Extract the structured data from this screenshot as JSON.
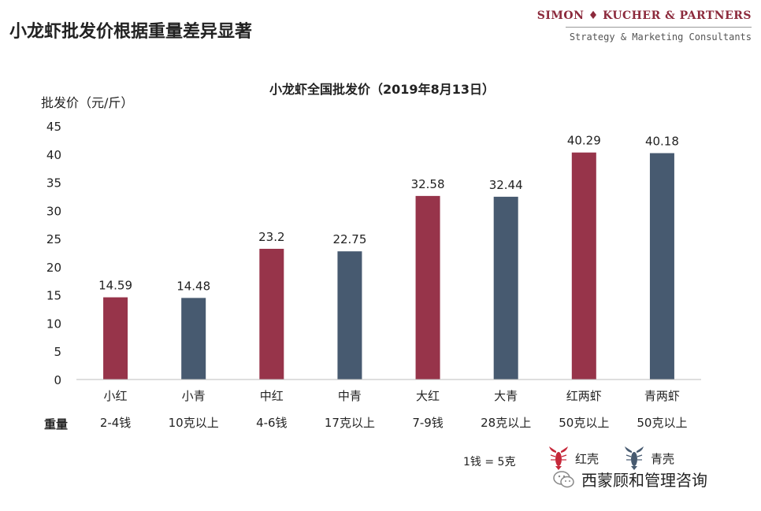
{
  "page": {
    "title": "小龙虾批发价根据重量差异显著",
    "brand_name": "SIMON ♦ KUCHER & PARTNERS",
    "brand_tagline": "Strategy & Marketing Consultants"
  },
  "chart_data": {
    "type": "bar",
    "title": "小龙虾全国批发价（2019年8月13日）",
    "ylabel": "批发价（元/斤）",
    "xlabel": "",
    "ylim": [
      0,
      45
    ],
    "yticks": [
      0,
      5,
      10,
      15,
      20,
      25,
      30,
      35,
      40,
      45
    ],
    "grid": false,
    "categories": [
      "小红",
      "小青",
      "中红",
      "中青",
      "大红",
      "大青",
      "红两虾",
      "青两虾"
    ],
    "values": [
      14.59,
      14.48,
      23.2,
      22.75,
      32.58,
      32.44,
      40.29,
      40.18
    ],
    "data_labels": [
      "14.59",
      "14.48",
      "23.2",
      "22.75",
      "32.58",
      "32.44",
      "40.29",
      "40.18"
    ],
    "weights_row_label": "重量",
    "weights": [
      "2-4钱",
      "10克以上",
      "4-6钱",
      "17克以上",
      "7-9钱",
      "28克以上",
      "50克以上",
      "50克以上"
    ],
    "bar_colors": [
      "#97344a",
      "#475a70",
      "#97344a",
      "#475a70",
      "#97344a",
      "#475a70",
      "#97344a",
      "#475a70"
    ],
    "legend": [
      {
        "label": "红壳",
        "color": "#c6283a",
        "icon": "red-crayfish-icon"
      },
      {
        "label": "青壳",
        "color": "#475a70",
        "icon": "blue-crayfish-icon"
      }
    ]
  },
  "footnote": "1钱 = 5克",
  "watermark": "西蒙顾和管理咨询",
  "colors": {
    "red_bar": "#97344a",
    "blue_bar": "#475a70",
    "brand": "#8c2a3c"
  }
}
